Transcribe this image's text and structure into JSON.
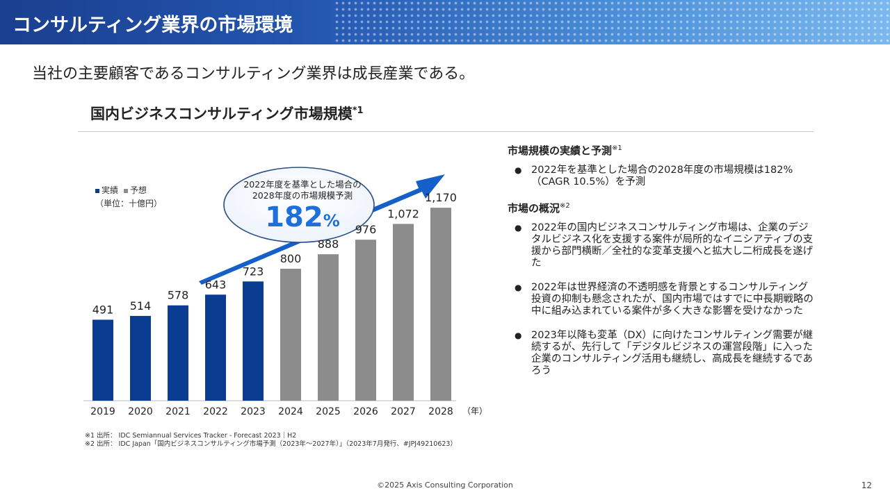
{
  "header": {
    "title": "コンサルティング業界の市場環境"
  },
  "lead": "当社の主要顧客であるコンサルティング業界は成長産業である。",
  "section": {
    "title": "国内ビジネスコンサルティング市場規模",
    "sup": "*1"
  },
  "legend": {
    "actual": "実績",
    "forecast": "予想",
    "unit": "（単位：十億円）"
  },
  "bubble": {
    "line1": "2022年度を基準とした場合の",
    "line2": "2028年度の市場規模予測",
    "value": "182",
    "unit": "%"
  },
  "chart_data": {
    "type": "bar",
    "categories": [
      "2019",
      "2020",
      "2021",
      "2022",
      "2023",
      "2024",
      "2025",
      "2026",
      "2027",
      "2028"
    ],
    "values": [
      491,
      514,
      578,
      643,
      723,
      800,
      888,
      976,
      1072,
      1170
    ],
    "value_labels": [
      "491",
      "514",
      "578",
      "643",
      "723",
      "800",
      "888",
      "976",
      "1,072",
      "1,170"
    ],
    "series_status": [
      "actual",
      "actual",
      "actual",
      "actual",
      "actual",
      "forecast",
      "forecast",
      "forecast",
      "forecast",
      "forecast"
    ],
    "x_suffix": "（年）",
    "ylim": [
      0,
      1300
    ],
    "colors": {
      "actual": "#0a3d91",
      "forecast": "#8c8c8c",
      "arrow": "#1560c8"
    }
  },
  "right": {
    "h1": "市場規模の実績と予測",
    "h1_sup": "※1",
    "b1": "2022年を基準とした場合の2028年度の市場規模は182%（CAGR 10.5%）を予測",
    "h2": "市場の概況",
    "h2_sup": "※2",
    "b2": "2022年の国内ビジネスコンサルティング市場は、企業のデジタルビジネス化を支援する案件が局所的なイニシアティブの支援から部門横断／全社的な変革支援へと拡大し二桁成長を遂げた",
    "b3": "2022年は世界経済の不透明感を背景とするコンサルティング投資の抑制も懸念されたが、国内市場ではすでに中長期戦略の中に組み込まれている案件が多く大きな影響を受けなかった",
    "b4": "2023年以降も変革（DX）に向けたコンサルティング需要が継続するが、先行して「デジタルビジネスの運営段階」に入った企業のコンサルティング活用も継続し、高成長を継続するであろう"
  },
  "footnotes": {
    "n1": "※1 出所： IDC Semiannual Services Tracker - Forecast 2023｜H2",
    "n2": "※2 出所： IDC Japan「国内ビジネスコンサルティング市場予測（2023年～2027年）」（2023年7月発行、#JPJ49210623）"
  },
  "copyright": "©2025 Axis Consulting Corporation",
  "page": "12"
}
